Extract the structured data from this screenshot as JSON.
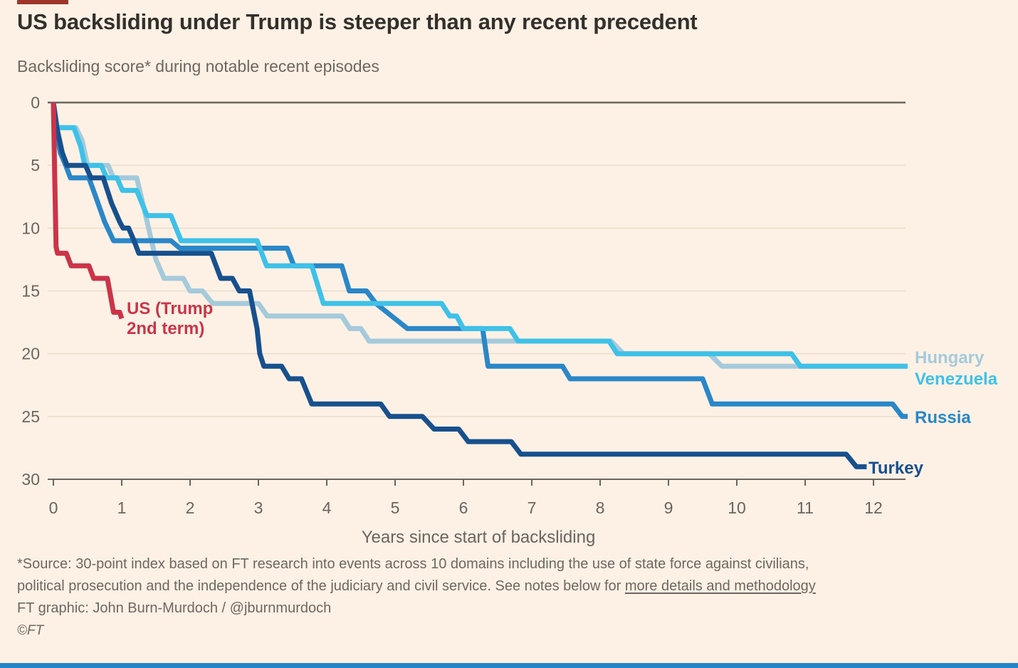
{
  "header": {
    "title": "US backsliding under Trump is steeper than any recent precedent",
    "subtitle": "Backsliding score* during notable recent episodes"
  },
  "chart_data": {
    "type": "line",
    "title": "US backsliding under Trump is steeper than any recent precedent",
    "subtitle": "Backsliding score* during notable recent episodes",
    "xlabel": "Years since start of backsliding",
    "ylabel": "Backsliding score",
    "xlim": [
      0,
      12.5
    ],
    "ylim": [
      0,
      30
    ],
    "y_axis_inverted": true,
    "grid": "horizontal-only",
    "legend_position": "end-of-line-labels",
    "xticks": [
      0,
      1,
      2,
      3,
      4,
      5,
      6,
      7,
      8,
      9,
      10,
      11,
      12
    ],
    "yticks": [
      0,
      5,
      10,
      15,
      20,
      25,
      30
    ],
    "colors": {
      "background": "#fdf1e5",
      "grid": "#e9ddcf",
      "axis": "#6b645f",
      "accent_bar": "#9e352b",
      "bottom_bar": "#2386c8"
    },
    "series": [
      {
        "key": "hungary",
        "label": "Hungary",
        "color": "#a5cadb",
        "points": [
          [
            0,
            0
          ],
          [
            0.06,
            2
          ],
          [
            0.33,
            2
          ],
          [
            0.42,
            3
          ],
          [
            0.5,
            5
          ],
          [
            0.8,
            5
          ],
          [
            0.88,
            6
          ],
          [
            1.22,
            6
          ],
          [
            1.35,
            9
          ],
          [
            1.5,
            12.5
          ],
          [
            1.62,
            14
          ],
          [
            1.9,
            14
          ],
          [
            2.0,
            15
          ],
          [
            2.18,
            15
          ],
          [
            2.33,
            16
          ],
          [
            3.0,
            16
          ],
          [
            3.13,
            17
          ],
          [
            4.22,
            17
          ],
          [
            4.34,
            18
          ],
          [
            4.5,
            18
          ],
          [
            4.62,
            19
          ],
          [
            8.16,
            19
          ],
          [
            8.34,
            20
          ],
          [
            9.6,
            20
          ],
          [
            9.78,
            21
          ],
          [
            12.5,
            21
          ]
        ]
      },
      {
        "key": "russia",
        "label": "Russia",
        "color": "#2a87c8",
        "points": [
          [
            0,
            0
          ],
          [
            0.04,
            2
          ],
          [
            0.1,
            4
          ],
          [
            0.18,
            5
          ],
          [
            0.25,
            6
          ],
          [
            0.52,
            6
          ],
          [
            0.62,
            7.5
          ],
          [
            0.75,
            9.5
          ],
          [
            0.88,
            11
          ],
          [
            1.72,
            11
          ],
          [
            1.85,
            11.6
          ],
          [
            3.42,
            11.6
          ],
          [
            3.52,
            13
          ],
          [
            4.22,
            13
          ],
          [
            4.33,
            15
          ],
          [
            4.58,
            15
          ],
          [
            4.72,
            16
          ],
          [
            4.95,
            17
          ],
          [
            5.18,
            18
          ],
          [
            6.28,
            18
          ],
          [
            6.36,
            21
          ],
          [
            7.45,
            21
          ],
          [
            7.56,
            22
          ],
          [
            9.5,
            22
          ],
          [
            9.64,
            24
          ],
          [
            12.28,
            24
          ],
          [
            12.42,
            25
          ],
          [
            12.5,
            25
          ]
        ]
      },
      {
        "key": "venezuela",
        "label": "Venezuela",
        "color": "#3ec1e8",
        "points": [
          [
            0,
            0
          ],
          [
            0.03,
            2
          ],
          [
            0.3,
            2
          ],
          [
            0.4,
            3.5
          ],
          [
            0.46,
            5
          ],
          [
            0.7,
            5
          ],
          [
            0.78,
            6
          ],
          [
            0.93,
            6
          ],
          [
            1.01,
            7
          ],
          [
            1.22,
            7
          ],
          [
            1.37,
            9
          ],
          [
            1.72,
            9
          ],
          [
            1.87,
            11
          ],
          [
            2.98,
            11
          ],
          [
            3.12,
            13
          ],
          [
            3.78,
            13
          ],
          [
            3.95,
            16
          ],
          [
            5.68,
            16
          ],
          [
            5.8,
            17
          ],
          [
            5.9,
            17
          ],
          [
            6.0,
            18
          ],
          [
            6.68,
            18
          ],
          [
            6.8,
            19
          ],
          [
            8.13,
            19
          ],
          [
            8.25,
            20
          ],
          [
            10.8,
            20
          ],
          [
            10.93,
            21
          ],
          [
            12.5,
            21
          ]
        ]
      },
      {
        "key": "turkey",
        "label": "Turkey",
        "color": "#17508d",
        "points": [
          [
            0,
            0
          ],
          [
            0.05,
            2
          ],
          [
            0.13,
            4
          ],
          [
            0.2,
            5
          ],
          [
            0.47,
            5
          ],
          [
            0.55,
            6
          ],
          [
            0.73,
            6
          ],
          [
            0.85,
            8
          ],
          [
            0.97,
            9.5
          ],
          [
            1.02,
            10
          ],
          [
            1.1,
            10
          ],
          [
            1.18,
            11
          ],
          [
            1.25,
            12
          ],
          [
            2.31,
            12
          ],
          [
            2.45,
            14
          ],
          [
            2.62,
            14
          ],
          [
            2.72,
            15
          ],
          [
            2.87,
            15
          ],
          [
            2.98,
            18
          ],
          [
            3.02,
            20
          ],
          [
            3.08,
            21
          ],
          [
            3.34,
            21
          ],
          [
            3.45,
            22
          ],
          [
            3.63,
            22
          ],
          [
            3.78,
            24
          ],
          [
            4.79,
            24
          ],
          [
            4.92,
            25
          ],
          [
            5.4,
            25
          ],
          [
            5.57,
            26
          ],
          [
            5.93,
            26
          ],
          [
            6.07,
            27
          ],
          [
            6.7,
            27
          ],
          [
            6.84,
            28
          ],
          [
            11.6,
            28
          ],
          [
            11.75,
            29
          ],
          [
            11.9,
            29
          ]
        ]
      },
      {
        "key": "us",
        "label": "US (Trump",
        "label_line2": "2nd term)",
        "color": "#cb3449",
        "points": [
          [
            0,
            0
          ],
          [
            0.02,
            6
          ],
          [
            0.04,
            11.5
          ],
          [
            0.06,
            12
          ],
          [
            0.19,
            12
          ],
          [
            0.26,
            13
          ],
          [
            0.52,
            13
          ],
          [
            0.59,
            14
          ],
          [
            0.79,
            14
          ],
          [
            0.88,
            16.7
          ],
          [
            0.97,
            16.7
          ],
          [
            1.0,
            17.2
          ]
        ]
      }
    ]
  },
  "footer": {
    "source_line1": "*Source: 30-point index based on FT research into events across 10 domains including the use of state force against civilians,",
    "source_line2_prefix": "political prosecution and the independence of the judiciary and civil service. See notes below for ",
    "source_link": "more details and methodology",
    "credit": "FT graphic: John Burn-Murdoch / @jburnmurdoch",
    "copyright": "©FT"
  }
}
